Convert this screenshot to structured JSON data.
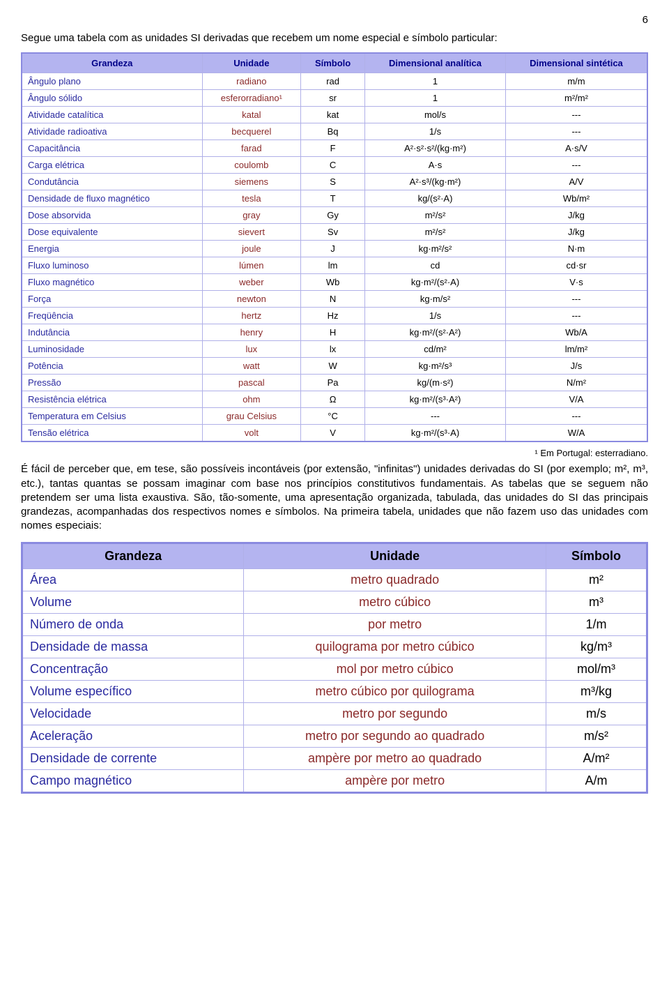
{
  "page_number": "6",
  "intro_text": "Segue uma tabela com as unidades SI derivadas que recebem um nome especial e símbolo particular:",
  "table1": {
    "headers": [
      "Grandeza",
      "Unidade",
      "Símbolo",
      "Dimensional analítica",
      "Dimensional sintética"
    ],
    "header_bg": "#b4b4f0",
    "header_color": "#000088",
    "border_color": "#8a8ae0",
    "col_g_color": "#2a2aa0",
    "col_u_color": "#8a2a2a",
    "rows": [
      [
        "Ângulo plano",
        "radiano",
        "rad",
        "1",
        "m/m"
      ],
      [
        "Ângulo sólido",
        "esferorradiano¹",
        "sr",
        "1",
        "m²/m²"
      ],
      [
        "Atividade catalítica",
        "katal",
        "kat",
        "mol/s",
        "---"
      ],
      [
        "Atividade radioativa",
        "becquerel",
        "Bq",
        "1/s",
        "---"
      ],
      [
        "Capacitância",
        "farad",
        "F",
        "A²·s²·s²/(kg·m²)",
        "A·s/V"
      ],
      [
        "Carga elétrica",
        "coulomb",
        "C",
        "A·s",
        "---"
      ],
      [
        "Condutância",
        "siemens",
        "S",
        "A²·s³/(kg·m²)",
        "A/V"
      ],
      [
        "Densidade de fluxo magnético",
        "tesla",
        "T",
        "kg/(s²·A)",
        "Wb/m²"
      ],
      [
        "Dose absorvida",
        "gray",
        "Gy",
        "m²/s²",
        "J/kg"
      ],
      [
        "Dose equivalente",
        "sievert",
        "Sv",
        "m²/s²",
        "J/kg"
      ],
      [
        "Energia",
        "joule",
        "J",
        "kg·m²/s²",
        "N·m"
      ],
      [
        "Fluxo luminoso",
        "lúmen",
        "lm",
        "cd",
        "cd·sr"
      ],
      [
        "Fluxo magnético",
        "weber",
        "Wb",
        "kg·m²/(s²·A)",
        "V·s"
      ],
      [
        "Força",
        "newton",
        "N",
        "kg·m/s²",
        "---"
      ],
      [
        "Freqüência",
        "hertz",
        "Hz",
        "1/s",
        "---"
      ],
      [
        "Indutância",
        "henry",
        "H",
        "kg·m²/(s²·A²)",
        "Wb/A"
      ],
      [
        "Luminosidade",
        "lux",
        "lx",
        "cd/m²",
        "lm/m²"
      ],
      [
        "Potência",
        "watt",
        "W",
        "kg·m²/s³",
        "J/s"
      ],
      [
        "Pressão",
        "pascal",
        "Pa",
        "kg/(m·s²)",
        "N/m²"
      ],
      [
        "Resistência elétrica",
        "ohm",
        "Ω",
        "kg·m²/(s³·A²)",
        "V/A"
      ],
      [
        "Temperatura em Celsius",
        "grau Celsius",
        "°C",
        "---",
        "---"
      ],
      [
        "Tensão elétrica",
        "volt",
        "V",
        "kg·m²/(s³·A)",
        "W/A"
      ]
    ]
  },
  "footnote": "¹ Em Portugal: esterradiano.",
  "middle_text": "É fácil de perceber que, em tese, são possíveis incontáveis (por extensão, \"infinitas\") unidades derivadas do SI (por exemplo; m², m³, etc.), tantas quantas se possam imaginar com base nos princípios constitutivos fundamentais. As tabelas que se seguem não pretendem ser uma lista exaustiva. São, tão-somente, uma apresentação organizada, tabulada, das unidades do SI das principais grandezas, acompanhadas dos respectivos nomes e símbolos. Na primeira tabela, unidades que não fazem uso das unidades com nomes especiais:",
  "table2": {
    "headers": [
      "Grandeza",
      "Unidade",
      "Símbolo"
    ],
    "header_bg": "#b4b4f0",
    "rows": [
      [
        "Área",
        "metro quadrado",
        "m²"
      ],
      [
        "Volume",
        "metro cúbico",
        "m³"
      ],
      [
        "Número de onda",
        "por metro",
        "1/m"
      ],
      [
        "Densidade de massa",
        "quilograma por metro cúbico",
        "kg/m³"
      ],
      [
        "Concentração",
        "mol por metro cúbico",
        "mol/m³"
      ],
      [
        "Volume específico",
        "metro cúbico por quilograma",
        "m³/kg"
      ],
      [
        "Velocidade",
        "metro por segundo",
        "m/s"
      ],
      [
        "Aceleração",
        "metro por segundo ao quadrado",
        "m/s²"
      ],
      [
        "Densidade de corrente",
        "ampère por metro ao quadrado",
        "A/m²"
      ],
      [
        "Campo magnético",
        "ampère por metro",
        "A/m"
      ]
    ]
  }
}
